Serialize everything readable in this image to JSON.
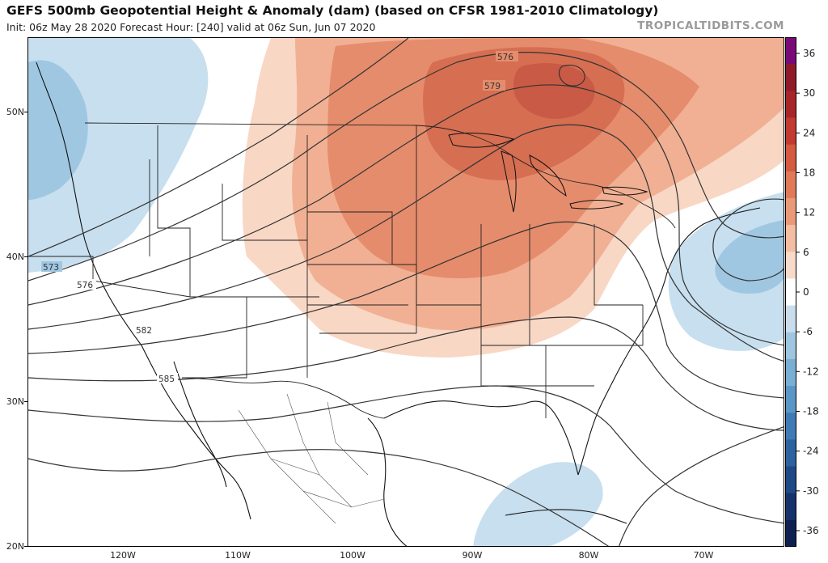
{
  "header": {
    "title": "GEFS 500mb Geopotential Height & Anomaly (dam) (based on CFSR 1981-2010 Climatology)",
    "subtitle": "Init: 06z May 28 2020   Forecast Hour: [240]   valid at 06z Sun, Jun 07 2020",
    "brand": "TROPICALTIDBITS.COM"
  },
  "axes": {
    "lat_labels": [
      "50N",
      "40N",
      "30N",
      "20N"
    ],
    "lon_labels": [
      "120W",
      "110W",
      "100W",
      "90W",
      "80W",
      "70W"
    ]
  },
  "contours": {
    "labels": [
      "576",
      "579",
      "573",
      "576",
      "582",
      "585"
    ]
  },
  "colorbar": {
    "labels": [
      "36",
      "30",
      "24",
      "18",
      "12",
      "6",
      "0",
      "-6",
      "-12",
      "-18",
      "-24",
      "-30",
      "-36"
    ],
    "colors": [
      "#7a0a78",
      "#8e1a2a",
      "#a8262a",
      "#c23a30",
      "#d45a40",
      "#e07a58",
      "#ea9a78",
      "#f4bea2",
      "#f8dac8",
      "#ffffff",
      "#c9dded",
      "#9fc6e0",
      "#78afd3",
      "#5a96c6",
      "#3f7cb6",
      "#2d62a0",
      "#1f4886",
      "#16326a",
      "#0e2050"
    ],
    "colors_note_positive_to_negative": true
  },
  "anomaly_colors": {
    "positive_strong": "#c95a45",
    "positive_mid": "#e28a68",
    "positive_light": "#f0a886",
    "positive_faint": "#f8d1bb",
    "negative_faint": "#c7dfee",
    "negative_light": "#9fc7e2"
  }
}
